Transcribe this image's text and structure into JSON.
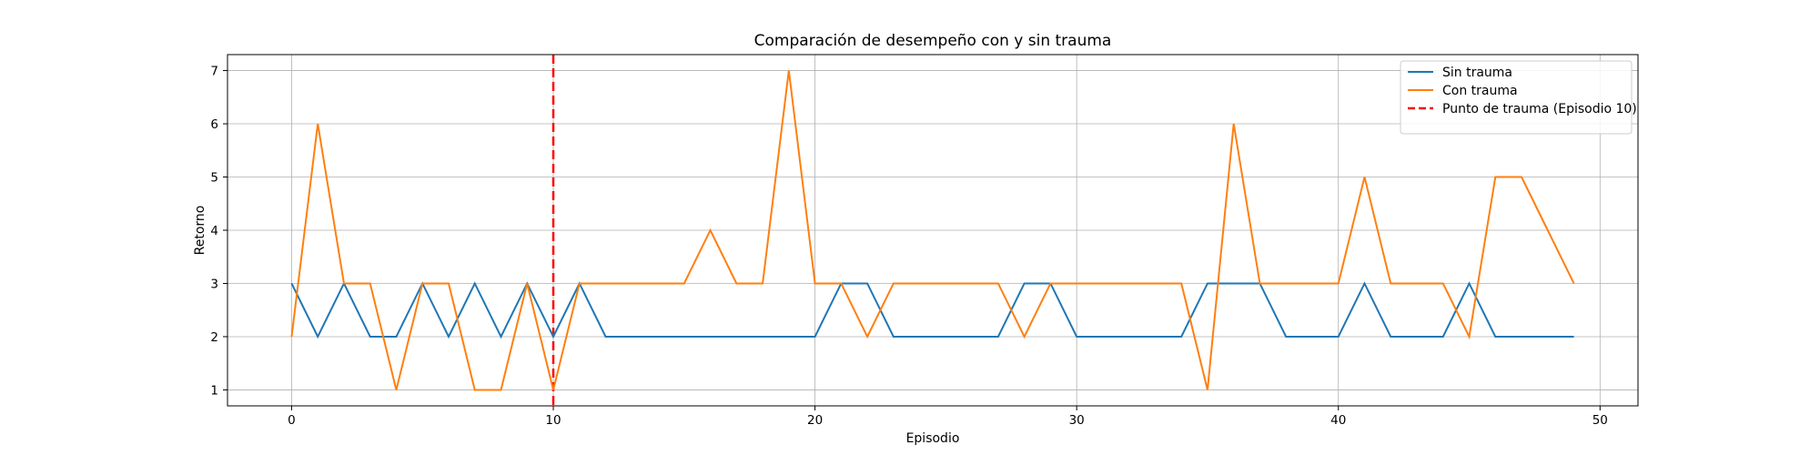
{
  "chart_data": {
    "type": "line",
    "title": "Comparación de desempeño con y sin trauma",
    "xlabel": "Episodio",
    "ylabel": "Retorno",
    "xlim": [
      -2.45,
      51.45
    ],
    "ylim": [
      0.7,
      7.3
    ],
    "xticks": [
      0,
      10,
      20,
      30,
      40,
      50
    ],
    "yticks": [
      1,
      2,
      3,
      4,
      5,
      6,
      7
    ],
    "grid": true,
    "legend_position": "top-right",
    "x": [
      0,
      1,
      2,
      3,
      4,
      5,
      6,
      7,
      8,
      9,
      10,
      11,
      12,
      13,
      14,
      15,
      16,
      17,
      18,
      19,
      20,
      21,
      22,
      23,
      24,
      25,
      26,
      27,
      28,
      29,
      30,
      31,
      32,
      33,
      34,
      35,
      36,
      37,
      38,
      39,
      40,
      41,
      42,
      43,
      44,
      45,
      46,
      47,
      48,
      49
    ],
    "series": [
      {
        "name": "Sin trauma",
        "color": "#1f77b4",
        "values": [
          3,
          2,
          3,
          2,
          2,
          3,
          2,
          3,
          2,
          3,
          2,
          3,
          2,
          2,
          2,
          2,
          2,
          2,
          2,
          2,
          2,
          3,
          3,
          2,
          2,
          2,
          2,
          2,
          3,
          3,
          2,
          2,
          2,
          2,
          2,
          3,
          3,
          3,
          2,
          2,
          2,
          3,
          2,
          2,
          2,
          3,
          2,
          2,
          2,
          2
        ]
      },
      {
        "name": "Con trauma",
        "color": "#ff7f0e",
        "values": [
          2,
          6,
          3,
          3,
          1,
          3,
          3,
          1,
          1,
          3,
          1,
          3,
          3,
          3,
          3,
          3,
          4,
          3,
          3,
          7,
          3,
          3,
          2,
          3,
          3,
          3,
          3,
          3,
          2,
          3,
          3,
          3,
          3,
          3,
          3,
          1,
          6,
          3,
          3,
          3,
          3,
          5,
          3,
          3,
          3,
          2,
          5,
          5,
          4,
          3
        ]
      }
    ],
    "vlines": [
      {
        "x": 10,
        "name": "Punto de trauma (Episodio 10)",
        "color": "#ff0000",
        "style": "dashed"
      }
    ]
  }
}
